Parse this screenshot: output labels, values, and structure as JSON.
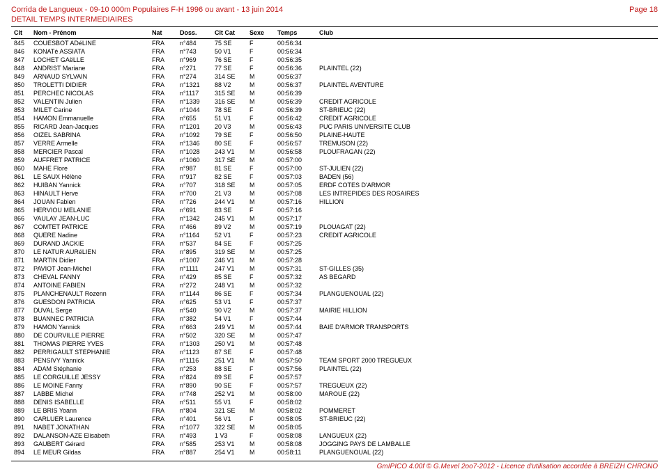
{
  "header": {
    "event_line": "Corrida de Langueux - 09-10 000m Populaires F-H 1996 ou avant - 13 juin 2014",
    "subtitle": "DETAIL TEMPS INTERMEDIAIRES",
    "page_label": "Page 18"
  },
  "table": {
    "columns": [
      "Clt",
      "Nom - Prénom",
      "Nat",
      "Doss.",
      "Clt Cat",
      "Sexe",
      "Temps",
      "Club"
    ],
    "rows": [
      [
        "845",
        "COUESBOT ADéLINE",
        "FRA",
        "n°484",
        "75 SE",
        "F",
        "00:56:34",
        ""
      ],
      [
        "846",
        "KONATé ASSIATA",
        "FRA",
        "n°743",
        "50 V1",
        "F",
        "00:56:34",
        ""
      ],
      [
        "847",
        "LOCHET GAëLLE",
        "FRA",
        "n°969",
        "76 SE",
        "F",
        "00:56:35",
        ""
      ],
      [
        "848",
        "ANDRIST Mariane",
        "FRA",
        "n°271",
        "77 SE",
        "F",
        "00:56:36",
        "PLAINTEL (22)"
      ],
      [
        "849",
        "ARNAUD SYLVAIN",
        "FRA",
        "n°274",
        "314 SE",
        "M",
        "00:56:37",
        ""
      ],
      [
        "850",
        "TROLETTI DIDIER",
        "FRA",
        "n°1321",
        "88 V2",
        "M",
        "00:56:37",
        "PLAINTEL AVENTURE"
      ],
      [
        "851",
        "PERCHEC NICOLAS",
        "FRA",
        "n°1117",
        "315 SE",
        "M",
        "00:56:39",
        ""
      ],
      [
        "852",
        "VALENTIN Julien",
        "FRA",
        "n°1339",
        "316 SE",
        "M",
        "00:56:39",
        "CREDIT AGRICOLE"
      ],
      [
        "853",
        "MILET Carine",
        "FRA",
        "n°1044",
        "78 SE",
        "F",
        "00:56:39",
        "ST-BRIEUC (22)"
      ],
      [
        "854",
        "HAMON Emmanuelle",
        "FRA",
        "n°655",
        "51 V1",
        "F",
        "00:56:42",
        "CREDIT AGRICOLE"
      ],
      [
        "855",
        "RICARD Jean-Jacques",
        "FRA",
        "n°1201",
        "20 V3",
        "M",
        "00:56:43",
        "PUC PARIS UNIVERSITE CLUB"
      ],
      [
        "856",
        "OIZEL SABRINA",
        "FRA",
        "n°1092",
        "79 SE",
        "F",
        "00:56:50",
        "PLAINE-HAUTE"
      ],
      [
        "857",
        "VERRE Armelle",
        "FRA",
        "n°1346",
        "80 SE",
        "F",
        "00:56:57",
        "TREMUSON (22)"
      ],
      [
        "858",
        "MERCIER Pascal",
        "FRA",
        "n°1028",
        "243 V1",
        "M",
        "00:56:58",
        "PLOUFRAGAN (22)"
      ],
      [
        "859",
        "AUFFRET PATRICE",
        "FRA",
        "n°1060",
        "317 SE",
        "M",
        "00:57:00",
        ""
      ],
      [
        "860",
        "MAHE Flore",
        "FRA",
        "n°987",
        "81 SE",
        "F",
        "00:57:00",
        "ST-JULIEN (22)"
      ],
      [
        "861",
        "LE SAUX Hélène",
        "FRA",
        "n°917",
        "82 SE",
        "F",
        "00:57:03",
        "BADEN (56)"
      ],
      [
        "862",
        "HUIBAN Yannick",
        "FRA",
        "n°707",
        "318 SE",
        "M",
        "00:57:05",
        "ERDF COTES D'ARMOR"
      ],
      [
        "863",
        "HINAULT Herve",
        "FRA",
        "n°700",
        "21 V3",
        "M",
        "00:57:08",
        "LES INTREPIDES DES ROSAIRES"
      ],
      [
        "864",
        "JOUAN Fabien",
        "FRA",
        "n°726",
        "244 V1",
        "M",
        "00:57:16",
        "HILLION"
      ],
      [
        "865",
        "HERVIOU MELANIE",
        "FRA",
        "n°691",
        "83 SE",
        "F",
        "00:57:16",
        ""
      ],
      [
        "866",
        "VAULAY JEAN-LUC",
        "FRA",
        "n°1342",
        "245 V1",
        "M",
        "00:57:17",
        ""
      ],
      [
        "867",
        "COMTET PATRICE",
        "FRA",
        "n°466",
        "89 V2",
        "M",
        "00:57:19",
        "PLOUAGAT (22)"
      ],
      [
        "868",
        "QUERE Nadine",
        "FRA",
        "n°1164",
        "52 V1",
        "F",
        "00:57:23",
        "CREDIT AGRICOLE"
      ],
      [
        "869",
        "DURAND JACKIE",
        "FRA",
        "n°537",
        "84 SE",
        "F",
        "00:57:25",
        ""
      ],
      [
        "870",
        "LE NATUR AURéLIEN",
        "FRA",
        "n°895",
        "319 SE",
        "M",
        "00:57:25",
        ""
      ],
      [
        "871",
        "MARTIN Didier",
        "FRA",
        "n°1007",
        "246 V1",
        "M",
        "00:57:28",
        ""
      ],
      [
        "872",
        "PAVIOT Jean-Michel",
        "FRA",
        "n°1111",
        "247 V1",
        "M",
        "00:57:31",
        "ST-GILLES (35)"
      ],
      [
        "873",
        "CHEVAL FANNY",
        "FRA",
        "n°429",
        "85 SE",
        "F",
        "00:57:32",
        "AS BEGARD"
      ],
      [
        "874",
        "ANTOINE FABIEN",
        "FRA",
        "n°272",
        "248 V1",
        "M",
        "00:57:32",
        ""
      ],
      [
        "875",
        "PLANCHENAULT Rozenn",
        "FRA",
        "n°1144",
        "86 SE",
        "F",
        "00:57:34",
        "PLANGUENOUAL (22)"
      ],
      [
        "876",
        "GUESDON PATRICIA",
        "FRA",
        "n°625",
        "53 V1",
        "F",
        "00:57:37",
        ""
      ],
      [
        "877",
        "DUVAL Serge",
        "FRA",
        "n°540",
        "90 V2",
        "M",
        "00:57:37",
        "MAIRIE HILLION"
      ],
      [
        "878",
        "BUANNEC PATRICIA",
        "FRA",
        "n°382",
        "54 V1",
        "F",
        "00:57:44",
        ""
      ],
      [
        "879",
        "HAMON Yannick",
        "FRA",
        "n°663",
        "249 V1",
        "M",
        "00:57:44",
        "BAIE D'ARMOR TRANSPORTS"
      ],
      [
        "880",
        "DE COURVILLE PIERRE",
        "FRA",
        "n°502",
        "320 SE",
        "M",
        "00:57:47",
        ""
      ],
      [
        "881",
        "THOMAS PIERRE YVES",
        "FRA",
        "n°1303",
        "250 V1",
        "M",
        "00:57:48",
        ""
      ],
      [
        "882",
        "PERRIGAULT STEPHANIE",
        "FRA",
        "n°1123",
        "87 SE",
        "F",
        "00:57:48",
        ""
      ],
      [
        "883",
        "PENSIVY Yannick",
        "FRA",
        "n°1116",
        "251 V1",
        "M",
        "00:57:50",
        "TEAM SPORT 2000 TREGUEUX"
      ],
      [
        "884",
        "ADAM Stéphanie",
        "FRA",
        "n°253",
        "88 SE",
        "F",
        "00:57:56",
        "PLAINTEL (22)"
      ],
      [
        "885",
        "LE CORGUILLE JESSY",
        "FRA",
        "n°824",
        "89 SE",
        "F",
        "00:57:57",
        ""
      ],
      [
        "886",
        "LE MOINE Fanny",
        "FRA",
        "n°890",
        "90 SE",
        "F",
        "00:57:57",
        "TREGUEUX (22)"
      ],
      [
        "887",
        "LABBE Michel",
        "FRA",
        "n°748",
        "252 V1",
        "M",
        "00:58:00",
        "MAROUE (22)"
      ],
      [
        "888",
        "DENIS ISABELLE",
        "FRA",
        "n°511",
        "55 V1",
        "F",
        "00:58:02",
        ""
      ],
      [
        "889",
        "LE BRIS Yoann",
        "FRA",
        "n°804",
        "321 SE",
        "M",
        "00:58:02",
        "POMMERET"
      ],
      [
        "890",
        "CARLUER Laurence",
        "FRA",
        "n°401",
        "56 V1",
        "F",
        "00:58:05",
        "ST-BRIEUC (22)"
      ],
      [
        "891",
        "NABET JONATHAN",
        "FRA",
        "n°1077",
        "322 SE",
        "M",
        "00:58:05",
        ""
      ],
      [
        "892",
        "DALANSON-AZE Elisabeth",
        "FRA",
        "n°493",
        "1 V3",
        "F",
        "00:58:08",
        "LANGUEUX (22)"
      ],
      [
        "893",
        "GAUBERT Gérard",
        "FRA",
        "n°585",
        "253 V1",
        "M",
        "00:58:08",
        "JOGGING PAYS DE LAMBALLE"
      ],
      [
        "894",
        "LE MEUR Gildas",
        "FRA",
        "n°887",
        "254 V1",
        "M",
        "00:58:11",
        "PLANGUENOUAL (22)"
      ]
    ]
  },
  "footer": {
    "text": "GmIPICO 4.00f © G.Mevel 2oo7-2012 - Licence d'utilisation accordée à BREIZH CHRONO"
  }
}
